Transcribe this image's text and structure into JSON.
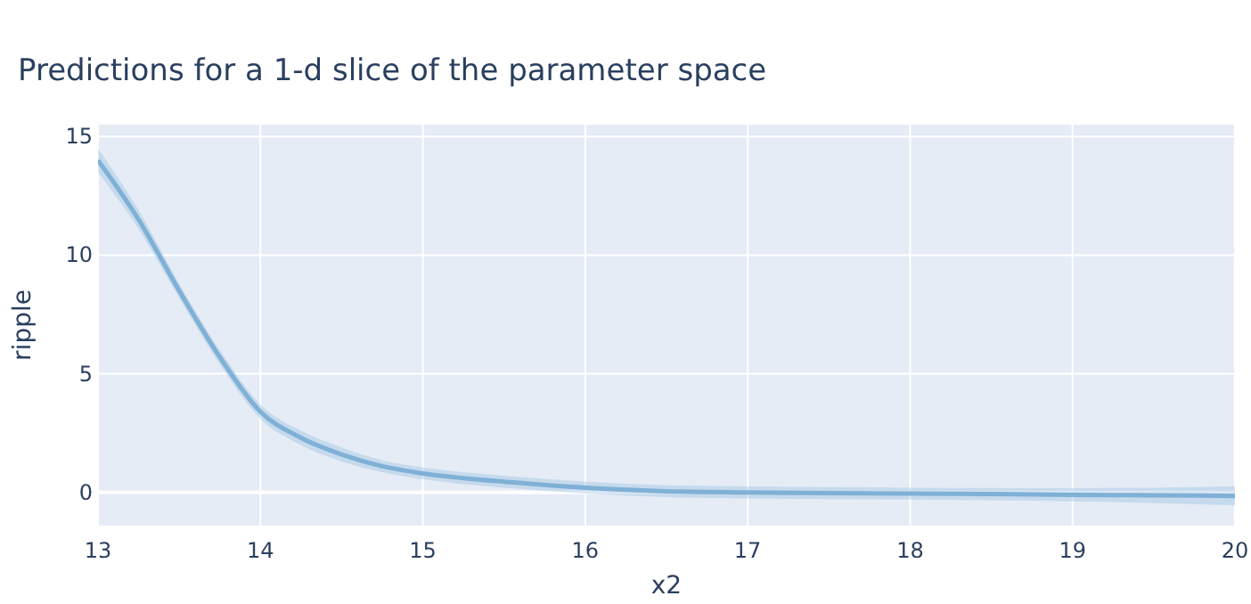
{
  "chart_data": {
    "type": "line",
    "title": "Predictions for a 1-d slice of the parameter space",
    "xlabel": "x2",
    "ylabel": "ripple",
    "x": [
      13,
      13.25,
      13.5,
      13.75,
      14,
      14.25,
      14.5,
      14.75,
      15,
      15.25,
      15.5,
      16,
      16.5,
      17,
      17.5,
      18,
      18.5,
      19,
      19.5,
      20
    ],
    "series": [
      {
        "color": "#7fb0d6",
        "values": [
          14.0,
          11.5,
          8.5,
          5.7,
          3.4,
          2.3,
          1.6,
          1.1,
          0.8,
          0.6,
          0.45,
          0.2,
          0.05,
          0,
          -0.03,
          -0.05,
          -0.07,
          -0.1,
          -0.12,
          -0.15
        ],
        "lower": [
          13.5,
          11.1,
          8.2,
          5.4,
          3.1,
          2.0,
          1.3,
          0.85,
          0.55,
          0.35,
          0.2,
          -0.05,
          -0.2,
          -0.25,
          -0.28,
          -0.3,
          -0.33,
          -0.38,
          -0.45,
          -0.55
        ],
        "upper": [
          14.5,
          11.9,
          8.8,
          6.0,
          3.7,
          2.6,
          1.9,
          1.35,
          1.05,
          0.85,
          0.7,
          0.45,
          0.3,
          0.25,
          0.22,
          0.2,
          0.19,
          0.18,
          0.2,
          0.25
        ]
      }
    ],
    "xlim": [
      13,
      20
    ],
    "xticks": [
      13,
      14,
      15,
      16,
      17,
      18,
      19,
      20
    ],
    "ylim": [
      -1.4,
      15.5
    ],
    "yticks": [
      0,
      5,
      10,
      15
    ],
    "grid": true,
    "line_style": "solid",
    "marker": "none"
  }
}
